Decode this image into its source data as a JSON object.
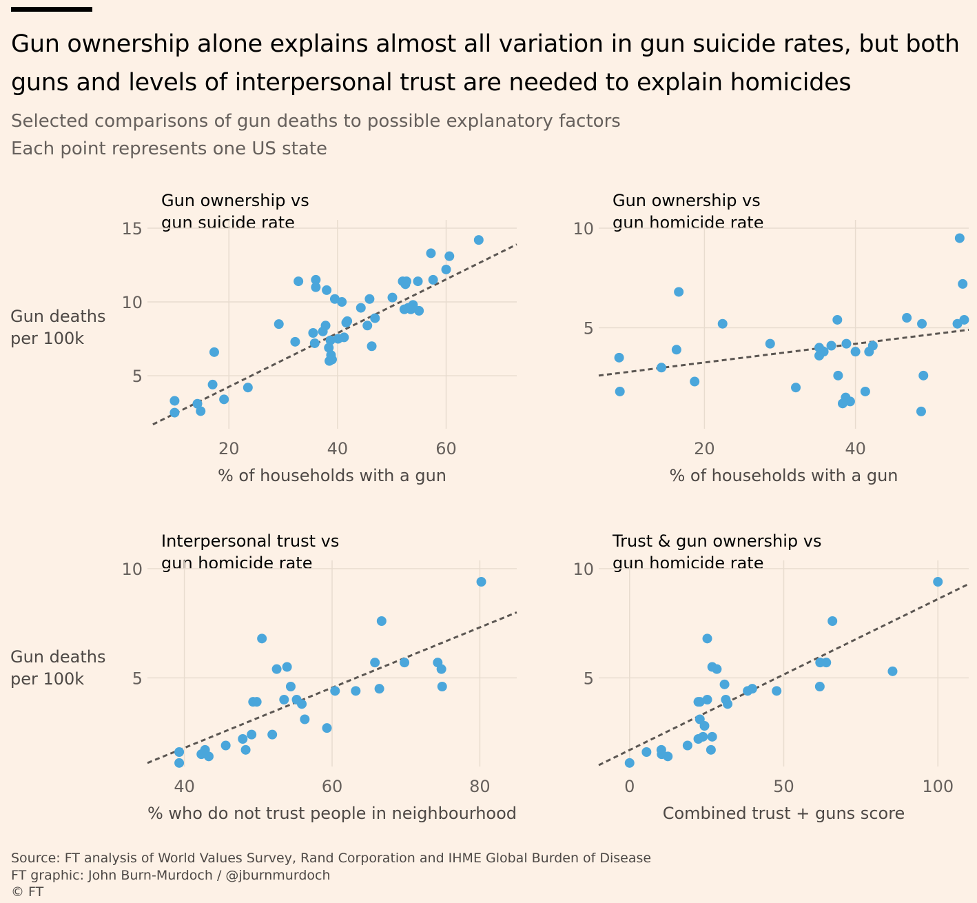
{
  "title": "Gun ownership alone explains almost all variation in gun suicide rates, but both guns and levels of interpersonal trust are needed to explain homicides",
  "subtitle_lines": [
    "Selected comparisons of gun deaths to possible explanatory factors",
    "Each point represents one US state"
  ],
  "colors": {
    "background": "#fdf1e6",
    "point": "#4aa6db",
    "trend": "#5b5652",
    "grid": "#e8dccf"
  },
  "chart_data": [
    {
      "type": "scatter",
      "title_lines": [
        "Gun ownership vs",
        "gun suicide rate"
      ],
      "xlabel": "% of households with a gun",
      "ylabel_lines": [
        "Gun deaths",
        "per 100k"
      ],
      "xlim": [
        5,
        73
      ],
      "ylim": [
        1.5,
        15
      ],
      "xticks": [
        "20",
        "40",
        "60"
      ],
      "yticks": [
        "5",
        "10",
        "15"
      ],
      "grid": true,
      "trendline": [
        [
          6,
          1.7
        ],
        [
          73,
          13.9
        ]
      ],
      "points": [
        [
          10,
          3.3
        ],
        [
          10,
          2.5
        ],
        [
          14.2,
          3.1
        ],
        [
          14.8,
          2.6
        ],
        [
          17,
          4.4
        ],
        [
          17.3,
          6.6
        ],
        [
          19.1,
          3.4
        ],
        [
          23.5,
          4.2
        ],
        [
          29.2,
          8.5
        ],
        [
          32.2,
          7.3
        ],
        [
          32.8,
          11.4
        ],
        [
          35.5,
          7.9
        ],
        [
          35.8,
          7.2
        ],
        [
          36,
          11.5
        ],
        [
          36,
          11
        ],
        [
          37.3,
          8
        ],
        [
          37.8,
          8.4
        ],
        [
          38,
          10.8
        ],
        [
          38.4,
          6.9
        ],
        [
          38.5,
          6
        ],
        [
          38.7,
          7.4
        ],
        [
          38.8,
          6.4
        ],
        [
          39,
          6.1
        ],
        [
          39.5,
          10.2
        ],
        [
          40.1,
          7.5
        ],
        [
          40.8,
          10
        ],
        [
          41.2,
          7.6
        ],
        [
          41.6,
          8.6
        ],
        [
          41.8,
          8.7
        ],
        [
          44.3,
          9.6
        ],
        [
          45.5,
          8.4
        ],
        [
          45.9,
          10.2
        ],
        [
          46.3,
          7
        ],
        [
          46.9,
          8.9
        ],
        [
          50.1,
          10.3
        ],
        [
          52,
          11.4
        ],
        [
          52.3,
          9.5
        ],
        [
          52.5,
          11.2
        ],
        [
          52.7,
          11.4
        ],
        [
          53,
          9.6
        ],
        [
          53.5,
          9.5
        ],
        [
          53.9,
          9.8
        ],
        [
          54.8,
          11.4
        ],
        [
          55,
          9.4
        ],
        [
          57.2,
          13.3
        ],
        [
          57.6,
          11.5
        ],
        [
          60,
          12.2
        ],
        [
          60.6,
          13.1
        ],
        [
          66,
          14.2
        ]
      ]
    },
    {
      "type": "scatter",
      "title_lines": [
        "Gun ownership vs",
        "gun homicide rate"
      ],
      "xlabel": "% of households with a gun",
      "ylabel_lines": [],
      "xlim": [
        6,
        55
      ],
      "ylim": [
        0,
        10
      ],
      "xticks": [
        "20",
        "40"
      ],
      "yticks": [
        "5",
        "10"
      ],
      "grid": true,
      "trendline": [
        [
          6,
          2.6
        ],
        [
          55,
          4.9
        ]
      ],
      "points": [
        [
          8.7,
          3.5
        ],
        [
          8.8,
          1.8
        ],
        [
          14.3,
          3
        ],
        [
          16.3,
          3.9
        ],
        [
          16.6,
          6.8
        ],
        [
          18.7,
          2.3
        ],
        [
          22.4,
          5.2
        ],
        [
          28.7,
          4.2
        ],
        [
          32.1,
          2
        ],
        [
          35.2,
          4
        ],
        [
          35.2,
          3.6
        ],
        [
          35.8,
          3.8
        ],
        [
          36.8,
          4.1
        ],
        [
          37.6,
          5.4
        ],
        [
          37.7,
          2.6
        ],
        [
          38.3,
          1.2
        ],
        [
          38.7,
          1.5
        ],
        [
          38.8,
          4.2
        ],
        [
          39.3,
          1.3
        ],
        [
          40,
          3.8
        ],
        [
          41.3,
          1.8
        ],
        [
          41.8,
          3.8
        ],
        [
          42.3,
          4.1
        ],
        [
          46.8,
          5.5
        ],
        [
          48.7,
          0.8
        ],
        [
          48.8,
          5.2
        ],
        [
          49,
          2.6
        ],
        [
          53.5,
          5.2
        ],
        [
          53.8,
          9.5
        ],
        [
          54.2,
          7.2
        ],
        [
          54.4,
          5.4
        ]
      ]
    },
    {
      "type": "scatter",
      "title_lines": [
        "Interpersonal trust vs",
        "gun homicide rate"
      ],
      "xlabel": "% who do not trust people in neighbourhood",
      "ylabel_lines": [
        "Gun deaths",
        "per 100k"
      ],
      "xlim": [
        35,
        85
      ],
      "ylim": [
        1,
        10
      ],
      "xticks": [
        "40",
        "60",
        "80"
      ],
      "yticks": [
        "5",
        "10"
      ],
      "grid": true,
      "trendline": [
        [
          35,
          1.1
        ],
        [
          85,
          8.0
        ]
      ],
      "points": [
        [
          39.3,
          1.6
        ],
        [
          39.3,
          1.1
        ],
        [
          42.3,
          1.5
        ],
        [
          42.8,
          1.7
        ],
        [
          43.3,
          1.4
        ],
        [
          45.6,
          1.9
        ],
        [
          47.9,
          2.2
        ],
        [
          48.3,
          1.7
        ],
        [
          49.1,
          2.4
        ],
        [
          49.3,
          3.9
        ],
        [
          49.8,
          3.9
        ],
        [
          50.5,
          6.8
        ],
        [
          51.9,
          2.4
        ],
        [
          52.5,
          5.4
        ],
        [
          53.5,
          4.0
        ],
        [
          53.9,
          5.5
        ],
        [
          54.4,
          4.6
        ],
        [
          55.2,
          4.0
        ],
        [
          55.9,
          3.8
        ],
        [
          56.3,
          3.1
        ],
        [
          59.3,
          2.7
        ],
        [
          60.4,
          4.4
        ],
        [
          63.2,
          4.4
        ],
        [
          65.8,
          5.7
        ],
        [
          66.4,
          4.5
        ],
        [
          66.7,
          7.6
        ],
        [
          69.8,
          5.7
        ],
        [
          74.3,
          5.7
        ],
        [
          74.8,
          5.4
        ],
        [
          74.9,
          4.6
        ],
        [
          80.2,
          9.4
        ]
      ]
    },
    {
      "type": "scatter",
      "title_lines": [
        "Trust & gun ownership vs",
        "gun homicide rate"
      ],
      "xlabel": "Combined trust + guns score",
      "ylabel_lines": [],
      "xlim": [
        -10,
        110
      ],
      "ylim": [
        1,
        10
      ],
      "xticks": [
        "0",
        "50",
        "100"
      ],
      "yticks": [
        "5",
        "10"
      ],
      "grid": true,
      "trendline": [
        [
          -10,
          1.0
        ],
        [
          110,
          9.3
        ]
      ],
      "points": [
        [
          0,
          1.1
        ],
        [
          5.5,
          1.6
        ],
        [
          10.3,
          1.7
        ],
        [
          10.4,
          1.5
        ],
        [
          12.4,
          1.4
        ],
        [
          18.8,
          1.9
        ],
        [
          22.3,
          2.2
        ],
        [
          22.3,
          3.9
        ],
        [
          22.8,
          3.9
        ],
        [
          22.8,
          3.1
        ],
        [
          23.8,
          2.3
        ],
        [
          24.3,
          2.8
        ],
        [
          25.2,
          4.0
        ],
        [
          25.2,
          6.8
        ],
        [
          26.4,
          1.7
        ],
        [
          26.8,
          2.3
        ],
        [
          26.8,
          5.5
        ],
        [
          28.3,
          5.4
        ],
        [
          30.8,
          4.7
        ],
        [
          31.2,
          4.0
        ],
        [
          31.8,
          3.8
        ],
        [
          38.3,
          4.4
        ],
        [
          39.8,
          4.5
        ],
        [
          47.7,
          4.4
        ],
        [
          61.7,
          4.6
        ],
        [
          61.8,
          5.7
        ],
        [
          63.8,
          5.7
        ],
        [
          65.8,
          7.6
        ],
        [
          85.3,
          5.3
        ],
        [
          100,
          9.4
        ]
      ]
    }
  ],
  "footer_lines": [
    "Source: FT analysis of World Values Survey, Rand Corporation and IHME Global Burden of Disease",
    "FT graphic: John Burn-Murdoch / @jburnmurdoch",
    "© FT"
  ]
}
